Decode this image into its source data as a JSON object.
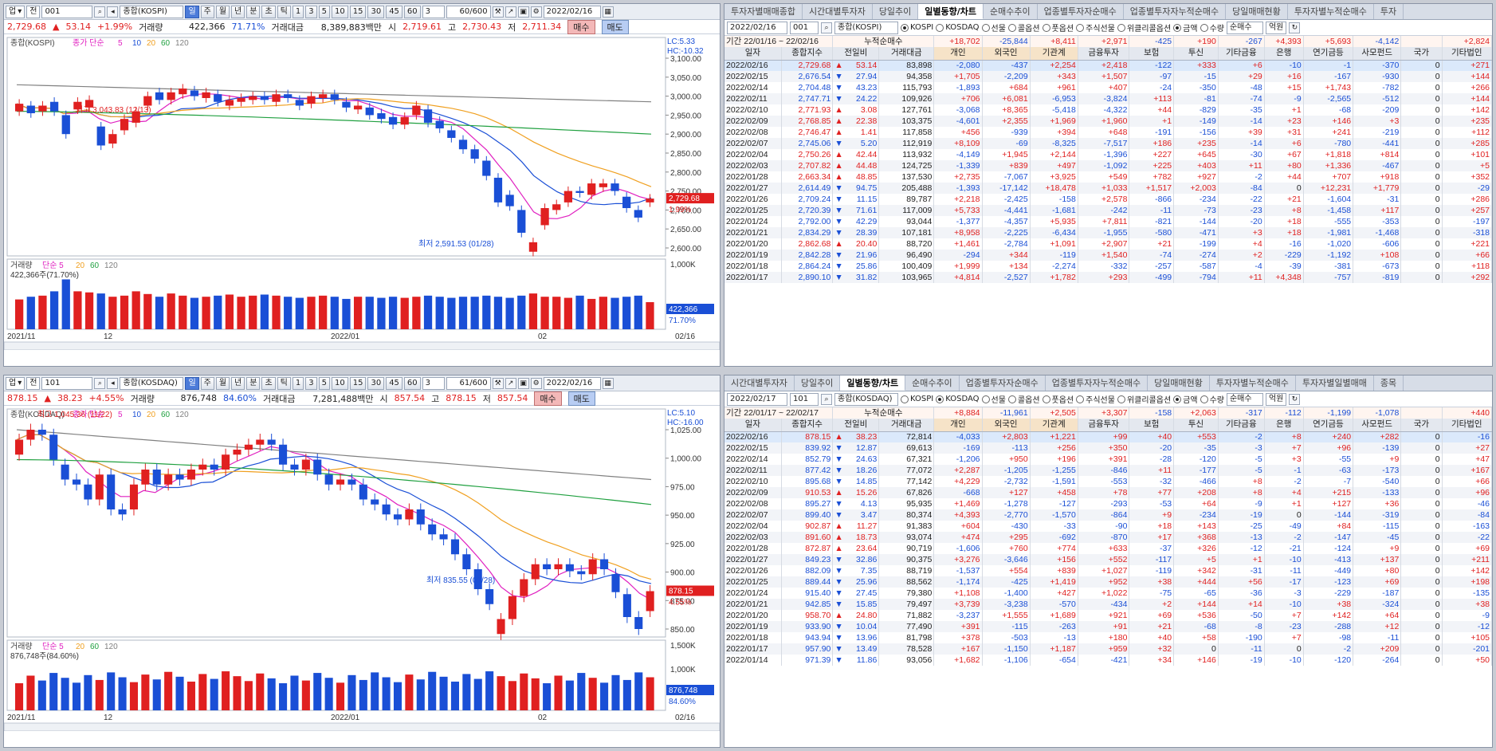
{
  "kospi_chart": {
    "toolbar": {
      "market": "업",
      "type": "전",
      "code": "001",
      "name": "종합(KOSPI)",
      "periods": [
        "일",
        "주",
        "월",
        "년",
        "분",
        "초",
        "틱"
      ],
      "active_period": "일",
      "minutes": [
        "1",
        "3",
        "5",
        "10",
        "15",
        "30",
        "45",
        "60"
      ],
      "spin": "3",
      "count": "60/600",
      "date": "2022/02/16"
    },
    "quote": {
      "price": "2,729.68",
      "change": "53.14",
      "change_pct": "+1.99%",
      "vol_label": "거래량",
      "volume": "422,366",
      "vol_ratio": "71.71%",
      "amt_label": "거래대금",
      "amount": "8,389,883백만",
      "open_label": "시",
      "open": "2,719.61",
      "high_label": "고",
      "high": "2,730.43",
      "low_label": "저",
      "low": "2,711.34",
      "buy": "매수",
      "sell": "매도"
    },
    "legend": {
      "name": "종합(KOSPI)",
      "ma": "종가 단순",
      "ma_periods": [
        "5",
        "10",
        "20",
        "60",
        "120"
      ]
    },
    "lc": "LC:5.33",
    "hc": "HC:-10.32",
    "y_ticks": [
      "3,100.00",
      "3,050.00",
      "3,000.00",
      "2,950.00",
      "2,900.00",
      "2,850.00",
      "2,800.00",
      "2,750.00",
      "2,700.00",
      "2,650.00",
      "2,600.00"
    ],
    "price_tag": "2,729.68",
    "pct_tag": "1.99%",
    "high_note": "최고 3,043.83 (12/13)",
    "low_note": "최저 2,591.53 (01/28)",
    "vol_legend": "거래량",
    "vol_ma": "단순 5",
    "vol_ma_periods": [
      "20",
      "60",
      "120"
    ],
    "vol_note": "422,366주(71.70%)",
    "vol_ticks": [
      "1,000K"
    ],
    "vol_tag": "422,366",
    "vol_tag2": "71.70%",
    "x_labels": [
      "2021/11",
      "12",
      "2022/01",
      "02",
      "02/16"
    ]
  },
  "kosdaq_chart": {
    "toolbar": {
      "market": "업",
      "type": "전",
      "code": "101",
      "name": "종합(KOSDAQ)",
      "periods": [
        "일",
        "주",
        "월",
        "년",
        "분",
        "초",
        "틱"
      ],
      "active_period": "일",
      "minutes": [
        "1",
        "3",
        "5",
        "10",
        "15",
        "30",
        "45",
        "60"
      ],
      "spin": "3",
      "count": "61/600",
      "date": "2022/02/16"
    },
    "quote": {
      "price": "878.15",
      "change": "38.23",
      "change_pct": "+4.55%",
      "vol_label": "거래량",
      "volume": "876,748",
      "vol_ratio": "84.60%",
      "amt_label": "거래대금",
      "amount": "7,281,488백만",
      "open_label": "시",
      "open": "857.54",
      "high_label": "고",
      "high": "878.15",
      "low_label": "저",
      "low": "857.54",
      "buy": "매수",
      "sell": "매도"
    },
    "legend": {
      "name": "종합(KOSDAQ)",
      "ma": "종가 단순",
      "ma_periods": [
        "5",
        "10",
        "20",
        "60",
        "120"
      ]
    },
    "lc": "LC:5.10",
    "hc": "HC:-16.00",
    "y_ticks": [
      "1,025.00",
      "1,000.00",
      "975.00",
      "950.00",
      "925.00",
      "900.00",
      "875.00",
      "850.00"
    ],
    "price_tag": "878.15",
    "pct_tag": "4.55%",
    "high_note": "최고 1,045.36 (11/22)",
    "low_note": "최저 835.55 (01/28)",
    "vol_legend": "거래량",
    "vol_ma": "단순 5",
    "vol_ma_periods": [
      "20",
      "60",
      "120"
    ],
    "vol_note": "876,748주(84.60%)",
    "vol_ticks": [
      "1,500K",
      "1,000K"
    ],
    "vol_tag": "876,748",
    "vol_tag2": "84.60%",
    "x_labels": [
      "2021/11",
      "12",
      "2022/01",
      "02",
      "02/16"
    ]
  },
  "kospi_table": {
    "tabs": [
      "투자자별매매종합",
      "시간대별투자자",
      "당일추이",
      "일별동향/차트",
      "순매수추이",
      "업종별투자자순매수",
      "업종별투자자누적순매수",
      "당일매매현황",
      "투자자별누적순매수",
      "투자"
    ],
    "active_tab": "일별동향/차트",
    "filter": {
      "date": "2022/02/16",
      "code": "001",
      "name": "종합(KOSPI)",
      "radios": [
        "KOSPI",
        "KOSDAQ",
        "선물",
        "콜옵션",
        "풋옵션",
        "주식선물",
        "위클리콜옵션"
      ],
      "unit": [
        "금액",
        "수량"
      ],
      "sort": "순매수",
      "won": "억원"
    },
    "period": {
      "label": "기간",
      "from": "22/01/16",
      "to": "22/02/16",
      "cum": "누적순매수",
      "values": [
        "+18,702",
        "-25,844",
        "+8,411",
        "+2,971",
        "-425",
        "+190",
        "-267",
        "+4,393",
        "+5,693",
        "-4,142",
        "",
        "+2,824"
      ]
    },
    "headers": [
      "일자",
      "종합지수",
      "전일비",
      "거래대금",
      "개인",
      "외국인",
      "기관계",
      "금융투자",
      "보험",
      "투신",
      "기타금융",
      "은행",
      "연기금등",
      "사모펀드",
      "국가",
      "기타법인"
    ],
    "rows": [
      [
        "2022/02/16",
        "2,729.68",
        "▲",
        "53.14",
        "83,898",
        "-2,080",
        "-437",
        "+2,254",
        "+2,418",
        "-122",
        "+333",
        "+6",
        "-10",
        "-1",
        "-370",
        "0",
        "+271"
      ],
      [
        "2022/02/15",
        "2,676.54",
        "▼",
        "27.94",
        "94,358",
        "+1,705",
        "-2,209",
        "+343",
        "+1,507",
        "-97",
        "-15",
        "+29",
        "+16",
        "-167",
        "-930",
        "0",
        "+144"
      ],
      [
        "2022/02/14",
        "2,704.48",
        "▼",
        "43.23",
        "115,793",
        "-1,893",
        "+684",
        "+961",
        "+407",
        "-24",
        "-350",
        "-48",
        "+15",
        "+1,743",
        "-782",
        "0",
        "+266"
      ],
      [
        "2022/02/11",
        "2,747.71",
        "▼",
        "24.22",
        "109,926",
        "+706",
        "+6,081",
        "-6,953",
        "-3,824",
        "+113",
        "-81",
        "-74",
        "-9",
        "-2,565",
        "-512",
        "0",
        "+144"
      ],
      [
        "2022/02/10",
        "2,771.93",
        "▲",
        "3.08",
        "127,761",
        "-3,068",
        "+8,365",
        "-5,418",
        "-4,322",
        "+44",
        "-829",
        "-35",
        "+1",
        "-68",
        "-209",
        "0",
        "+142"
      ],
      [
        "2022/02/09",
        "2,768.85",
        "▲",
        "22.38",
        "103,375",
        "-4,601",
        "+2,355",
        "+1,969",
        "+1,960",
        "+1",
        "-149",
        "-14",
        "+23",
        "+146",
        "+3",
        "0",
        "+235"
      ],
      [
        "2022/02/08",
        "2,746.47",
        "▲",
        "1.41",
        "117,858",
        "+456",
        "-939",
        "+394",
        "+648",
        "-191",
        "-156",
        "+39",
        "+31",
        "+241",
        "-219",
        "0",
        "+112"
      ],
      [
        "2022/02/07",
        "2,745.06",
        "▼",
        "5.20",
        "112,919",
        "+8,109",
        "-69",
        "-8,325",
        "-7,517",
        "+186",
        "+235",
        "-14",
        "+6",
        "-780",
        "-441",
        "0",
        "+285"
      ],
      [
        "2022/02/04",
        "2,750.26",
        "▲",
        "42.44",
        "113,932",
        "-4,149",
        "+1,945",
        "+2,144",
        "-1,396",
        "+227",
        "+645",
        "-30",
        "+67",
        "+1,818",
        "+814",
        "0",
        "+101"
      ],
      [
        "2022/02/03",
        "2,707.82",
        "▲",
        "44.48",
        "124,725",
        "-1,339",
        "+839",
        "+497",
        "-1,092",
        "+225",
        "+403",
        "+11",
        "+80",
        "+1,336",
        "-467",
        "0",
        "+5"
      ],
      [
        "2022/01/28",
        "2,663.34",
        "▲",
        "48.85",
        "137,530",
        "+2,735",
        "-7,067",
        "+3,925",
        "+549",
        "+782",
        "+927",
        "-2",
        "+44",
        "+707",
        "+918",
        "0",
        "+352"
      ],
      [
        "2022/01/27",
        "2,614.49",
        "▼",
        "94.75",
        "205,488",
        "-1,393",
        "-17,142",
        "+18,478",
        "+1,033",
        "+1,517",
        "+2,003",
        "-84",
        "0",
        "+12,231",
        "+1,779",
        "0",
        "-29"
      ],
      [
        "2022/01/26",
        "2,709.24",
        "▼",
        "11.15",
        "89,787",
        "+2,218",
        "-2,425",
        "-158",
        "+2,578",
        "-866",
        "-234",
        "-22",
        "+21",
        "-1,604",
        "-31",
        "0",
        "+286"
      ],
      [
        "2022/01/25",
        "2,720.39",
        "▼",
        "71.61",
        "117,009",
        "+5,733",
        "-4,441",
        "-1,681",
        "-242",
        "-11",
        "-73",
        "-23",
        "+8",
        "-1,458",
        "+117",
        "0",
        "+257"
      ],
      [
        "2022/01/24",
        "2,792.00",
        "▼",
        "42.29",
        "93,044",
        "-1,377",
        "-4,357",
        "+5,935",
        "+7,811",
        "-821",
        "-144",
        "-20",
        "+18",
        "-555",
        "-353",
        "0",
        "-197"
      ],
      [
        "2022/01/21",
        "2,834.29",
        "▼",
        "28.39",
        "107,181",
        "+8,958",
        "-2,225",
        "-6,434",
        "-1,955",
        "-580",
        "-471",
        "+3",
        "+18",
        "-1,981",
        "-1,468",
        "0",
        "-318"
      ],
      [
        "2022/01/20",
        "2,862.68",
        "▲",
        "20.40",
        "88,720",
        "+1,461",
        "-2,784",
        "+1,091",
        "+2,907",
        "+21",
        "-199",
        "+4",
        "-16",
        "-1,020",
        "-606",
        "0",
        "+221"
      ],
      [
        "2022/01/19",
        "2,842.28",
        "▼",
        "21.96",
        "96,490",
        "-294",
        "+344",
        "-119",
        "+1,540",
        "-74",
        "-274",
        "+2",
        "-229",
        "-1,192",
        "+108",
        "0",
        "+66"
      ],
      [
        "2022/01/18",
        "2,864.24",
        "▼",
        "25.86",
        "100,409",
        "+1,999",
        "+134",
        "-2,274",
        "-332",
        "-257",
        "-587",
        "-4",
        "-39",
        "-381",
        "-673",
        "0",
        "+118"
      ],
      [
        "2022/01/17",
        "2,890.10",
        "▼",
        "31.82",
        "103,965",
        "+4,814",
        "-2,527",
        "+1,782",
        "+293",
        "-499",
        "-794",
        "+11",
        "+4,348",
        "-757",
        "-819",
        "0",
        "+292"
      ]
    ]
  },
  "kosdaq_table": {
    "tabs": [
      "시간대별투자자",
      "당일추이",
      "일별동향/차트",
      "순매수추이",
      "업종별투자자순매수",
      "업종별투자자누적순매수",
      "당일매매현황",
      "투자자별누적순매수",
      "투자자별일별매매",
      "종목"
    ],
    "active_tab": "일별동향/차트",
    "filter": {
      "date": "2022/02/17",
      "code": "101",
      "name": "종합(KOSDAQ)",
      "radios": [
        "KOSPI",
        "KOSDAQ",
        "선물",
        "콜옵션",
        "풋옵션",
        "주식선물",
        "위클리콜옵션"
      ],
      "unit": [
        "금액",
        "수량"
      ],
      "sort": "순매수",
      "won": "억원"
    },
    "period": {
      "label": "기간",
      "from": "22/01/17",
      "to": "22/02/17",
      "cum": "누적순매수",
      "values": [
        "+8,884",
        "-11,961",
        "+2,505",
        "+3,307",
        "-158",
        "+2,063",
        "-317",
        "-112",
        "-1,199",
        "-1,078",
        "",
        "+440"
      ]
    },
    "headers": [
      "일자",
      "종합지수",
      "전일비",
      "거래대금",
      "개인",
      "외국인",
      "기관계",
      "금융투자",
      "보험",
      "투신",
      "기타금융",
      "은행",
      "연기금등",
      "사모펀드",
      "국가",
      "기타법인"
    ],
    "rows": [
      [
        "2022/02/16",
        "878.15",
        "▲",
        "38.23",
        "72,814",
        "-4,033",
        "+2,803",
        "+1,221",
        "+99",
        "+40",
        "+553",
        "-2",
        "+8",
        "+240",
        "+282",
        "0",
        "-16"
      ],
      [
        "2022/02/15",
        "839.92",
        "▼",
        "12.87",
        "69,613",
        "-169",
        "-113",
        "+256",
        "+350",
        "-20",
        "-35",
        "-3",
        "+7",
        "+96",
        "-139",
        "0",
        "+27"
      ],
      [
        "2022/02/14",
        "852.79",
        "▼",
        "24.63",
        "67,321",
        "-1,206",
        "+950",
        "+196",
        "+391",
        "-28",
        "-120",
        "-5",
        "+3",
        "-55",
        "+9",
        "0",
        "+47"
      ],
      [
        "2022/02/11",
        "877.42",
        "▼",
        "18.26",
        "77,072",
        "+2,287",
        "-1,205",
        "-1,255",
        "-846",
        "+11",
        "-177",
        "-5",
        "-1",
        "-63",
        "-173",
        "0",
        "+167"
      ],
      [
        "2022/02/10",
        "895.68",
        "▼",
        "14.85",
        "77,142",
        "+4,229",
        "-2,732",
        "-1,591",
        "-553",
        "-32",
        "-466",
        "+8",
        "-2",
        "-7",
        "-540",
        "0",
        "+66"
      ],
      [
        "2022/02/09",
        "910.53",
        "▲",
        "15.26",
        "67,826",
        "-668",
        "+127",
        "+458",
        "+78",
        "+77",
        "+208",
        "+8",
        "+4",
        "+215",
        "-133",
        "0",
        "+96"
      ],
      [
        "2022/02/08",
        "895.27",
        "▼",
        "4.13",
        "95,935",
        "+1,469",
        "-1,278",
        "-127",
        "-293",
        "-53",
        "+64",
        "-9",
        "+1",
        "+127",
        "+36",
        "0",
        "-46"
      ],
      [
        "2022/02/07",
        "899.40",
        "▼",
        "3.47",
        "80,374",
        "+4,393",
        "-2,770",
        "-1,570",
        "-864",
        "+9",
        "-234",
        "-19",
        "0",
        "-144",
        "-319",
        "0",
        "-84"
      ],
      [
        "2022/02/04",
        "902.87",
        "▲",
        "11.27",
        "91,383",
        "+604",
        "-430",
        "-33",
        "-90",
        "+18",
        "+143",
        "-25",
        "-49",
        "+84",
        "-115",
        "0",
        "-163"
      ],
      [
        "2022/02/03",
        "891.60",
        "▲",
        "18.73",
        "93,074",
        "+474",
        "+295",
        "-692",
        "-870",
        "+17",
        "+368",
        "-13",
        "-2",
        "-147",
        "-45",
        "0",
        "-22"
      ],
      [
        "2022/01/28",
        "872.87",
        "▲",
        "23.64",
        "90,719",
        "-1,606",
        "+760",
        "+774",
        "+633",
        "-37",
        "+326",
        "-12",
        "-21",
        "-124",
        "+9",
        "0",
        "+69"
      ],
      [
        "2022/01/27",
        "849.23",
        "▼",
        "32.86",
        "90,375",
        "+3,276",
        "-3,646",
        "+156",
        "+552",
        "-117",
        "+5",
        "+1",
        "-10",
        "-413",
        "+137",
        "0",
        "+211"
      ],
      [
        "2022/01/26",
        "882.09",
        "▼",
        "7.35",
        "88,719",
        "-1,537",
        "+554",
        "+839",
        "+1,027",
        "-119",
        "+342",
        "-31",
        "-11",
        "-449",
        "+80",
        "0",
        "+142"
      ],
      [
        "2022/01/25",
        "889.44",
        "▼",
        "25.96",
        "88,562",
        "-1,174",
        "-425",
        "+1,419",
        "+952",
        "+38",
        "+444",
        "+56",
        "-17",
        "-123",
        "+69",
        "0",
        "+198"
      ],
      [
        "2022/01/24",
        "915.40",
        "▼",
        "27.45",
        "79,380",
        "+1,108",
        "-1,400",
        "+427",
        "+1,022",
        "-75",
        "-65",
        "-36",
        "-3",
        "-229",
        "-187",
        "0",
        "-135"
      ],
      [
        "2022/01/21",
        "942.85",
        "▼",
        "15.85",
        "79,497",
        "+3,739",
        "-3,238",
        "-570",
        "-434",
        "+2",
        "+144",
        "+14",
        "-10",
        "+38",
        "-324",
        "0",
        "+38"
      ],
      [
        "2022/01/20",
        "958.70",
        "▲",
        "24.80",
        "71,882",
        "-3,237",
        "+1,555",
        "+1,689",
        "+921",
        "+69",
        "+536",
        "-50",
        "+7",
        "+142",
        "+64",
        "0",
        "-9"
      ],
      [
        "2022/01/19",
        "933.90",
        "▼",
        "10.04",
        "77,490",
        "+391",
        "-115",
        "-263",
        "+91",
        "+21",
        "-68",
        "-8",
        "-23",
        "-288",
        "+12",
        "0",
        "-12"
      ],
      [
        "2022/01/18",
        "943.94",
        "▼",
        "13.96",
        "81,798",
        "+378",
        "-503",
        "-13",
        "+180",
        "+40",
        "+58",
        "-190",
        "+7",
        "-98",
        "-11",
        "0",
        "+105"
      ],
      [
        "2022/01/17",
        "957.90",
        "▼",
        "13.49",
        "78,528",
        "+167",
        "-1,150",
        "+1,187",
        "+959",
        "+32",
        "0",
        "-11",
        "0",
        "-2",
        "+209",
        "0",
        "-201"
      ],
      [
        "2022/01/14",
        "971.39",
        "▼",
        "11.86",
        "93,056",
        "+1,682",
        "-1,106",
        "-654",
        "-421",
        "+34",
        "+146",
        "-19",
        "-10",
        "-120",
        "-264",
        "0",
        "+50"
      ]
    ]
  },
  "colors": {
    "up": "#e02020",
    "down": "#1a4fd6",
    "ma5": "#e020c0",
    "ma10": "#1a4fd6",
    "ma20": "#f0a020",
    "ma60": "#20a040",
    "ma120": "#808080"
  }
}
